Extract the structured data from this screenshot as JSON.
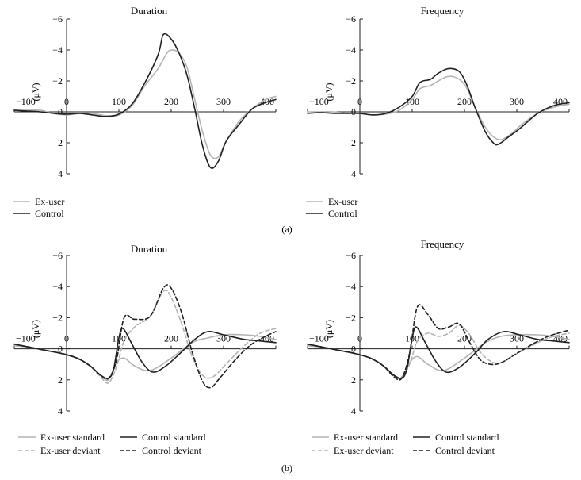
{
  "figure": {
    "panel_labels": [
      "(a)",
      "(b)"
    ],
    "y_unit_label": "(μV)"
  },
  "chart_data": [
    {
      "type": "line",
      "panel": "(a)",
      "title": "Duration",
      "xlabel": "",
      "ylabel": "(μV)",
      "xlim": [
        -100,
        400
      ],
      "ylim": [
        -6,
        4
      ],
      "y_inverted": true,
      "x_ticks": [
        -100,
        0,
        100,
        200,
        300,
        400
      ],
      "y_ticks": [
        -6,
        -4,
        -2,
        0,
        2,
        4
      ],
      "legend": "bottom-left",
      "series": [
        {
          "name": "Ex-user",
          "color": "#b3b3b3",
          "dash": "solid",
          "x": [
            -100,
            -75,
            -50,
            -25,
            0,
            25,
            50,
            75,
            100,
            125,
            150,
            175,
            190,
            200,
            215,
            230,
            245,
            260,
            275,
            290,
            305,
            330,
            355,
            380,
            400
          ],
          "y": [
            -0.1,
            -0.1,
            -0.1,
            0.1,
            0.2,
            0.1,
            0.1,
            0.25,
            0.2,
            -0.4,
            -1.7,
            -2.8,
            -3.7,
            -4.0,
            -3.8,
            -2.9,
            -0.8,
            1.3,
            2.8,
            2.9,
            1.9,
            0.6,
            -0.2,
            -0.8,
            -1.0
          ]
        },
        {
          "name": "Control",
          "color": "#231f20",
          "dash": "solid",
          "x": [
            -100,
            -75,
            -50,
            -25,
            0,
            25,
            50,
            75,
            100,
            125,
            150,
            175,
            185,
            200,
            215,
            230,
            245,
            260,
            275,
            290,
            305,
            330,
            355,
            380,
            400
          ],
          "y": [
            -0.1,
            -0.05,
            0,
            0.1,
            0.15,
            0.1,
            0.2,
            0.3,
            0.15,
            -0.5,
            -1.9,
            -3.7,
            -5.0,
            -4.7,
            -3.8,
            -2.4,
            -0.2,
            2.2,
            3.6,
            3.2,
            1.9,
            0.8,
            -0.2,
            -0.6,
            -0.8
          ]
        }
      ]
    },
    {
      "type": "line",
      "panel": "(a)",
      "title": "Frequency",
      "xlabel": "",
      "ylabel": "(μV)",
      "xlim": [
        -100,
        400
      ],
      "ylim": [
        -6,
        4
      ],
      "y_inverted": true,
      "x_ticks": [
        -100,
        0,
        100,
        200,
        300,
        400
      ],
      "y_ticks": [
        -6,
        -4,
        -2,
        0,
        2,
        4
      ],
      "legend": "bottom-left",
      "series": [
        {
          "name": "Ex-user",
          "color": "#b3b3b3",
          "dash": "solid",
          "x": [
            -100,
            -75,
            -50,
            -25,
            0,
            25,
            50,
            75,
            100,
            115,
            135,
            150,
            170,
            190,
            205,
            220,
            240,
            255,
            270,
            290,
            310,
            340,
            370,
            400
          ],
          "y": [
            0,
            0,
            0,
            0.1,
            0.1,
            0.2,
            0.15,
            -0.1,
            -0.8,
            -1.5,
            -1.7,
            -2.0,
            -2.3,
            -2.1,
            -1.5,
            -0.3,
            1.0,
            1.6,
            1.8,
            1.4,
            0.8,
            0.1,
            -0.3,
            -0.5
          ]
        },
        {
          "name": "Control",
          "color": "#231f20",
          "dash": "solid",
          "x": [
            -100,
            -75,
            -50,
            -25,
            0,
            25,
            50,
            75,
            100,
            115,
            135,
            150,
            170,
            190,
            205,
            220,
            240,
            255,
            265,
            285,
            305,
            340,
            370,
            400
          ],
          "y": [
            0.1,
            0.05,
            0.1,
            0.1,
            0.1,
            0.2,
            0.1,
            -0.3,
            -1.0,
            -1.9,
            -2.1,
            -2.5,
            -2.8,
            -2.6,
            -1.7,
            -0.3,
            1.3,
            2.0,
            2.1,
            1.6,
            1.1,
            0.1,
            -0.4,
            -0.6
          ]
        }
      ]
    },
    {
      "type": "line",
      "panel": "(b)",
      "title": "Duration",
      "xlabel": "",
      "ylabel": "(μV)",
      "xlim": [
        -100,
        400
      ],
      "ylim": [
        -6,
        4
      ],
      "y_inverted": true,
      "x_ticks": [
        -100,
        0,
        100,
        200,
        300,
        400
      ],
      "y_ticks": [
        -6,
        -4,
        -2,
        0,
        2,
        4
      ],
      "legend": "bottom-left",
      "series": [
        {
          "name": "Ex-user standard",
          "color": "#b3b3b3",
          "dash": "solid",
          "x": [
            -100,
            -70,
            -40,
            -10,
            20,
            45,
            65,
            80,
            95,
            110,
            130,
            160,
            200,
            240,
            270,
            300,
            340,
            370,
            400
          ],
          "y": [
            -0.2,
            -0.1,
            0.1,
            0.3,
            0.6,
            1.1,
            1.7,
            2.0,
            0.9,
            0.6,
            1.1,
            1.4,
            0.6,
            -0.4,
            -0.7,
            -0.9,
            -0.9,
            -0.8,
            -0.6
          ]
        },
        {
          "name": "Ex-user deviant",
          "color": "#b3b3b3",
          "dash": "dashed",
          "x": [
            -100,
            -70,
            -40,
            -10,
            20,
            45,
            65,
            80,
            95,
            110,
            130,
            160,
            185,
            200,
            220,
            240,
            260,
            280,
            310,
            340,
            370,
            400
          ],
          "y": [
            -0.2,
            -0.1,
            0.1,
            0.3,
            0.6,
            1.1,
            1.8,
            2.2,
            1.2,
            -0.5,
            -1.4,
            -2.1,
            -3.7,
            -3.3,
            -1.6,
            0.5,
            1.7,
            1.8,
            0.8,
            -0.2,
            -1.0,
            -1.3
          ]
        },
        {
          "name": "Control standard",
          "color": "#231f20",
          "dash": "solid",
          "x": [
            -100,
            -70,
            -40,
            -10,
            20,
            45,
            65,
            80,
            90,
            100,
            108,
            125,
            145,
            165,
            190,
            220,
            245,
            270,
            300,
            340,
            370,
            400
          ],
          "y": [
            -0.3,
            -0.1,
            0.1,
            0.3,
            0.6,
            1.1,
            1.7,
            1.9,
            1.3,
            -0.7,
            -1.3,
            -0.3,
            0.9,
            1.5,
            1.1,
            0.2,
            -0.6,
            -1.1,
            -0.9,
            -0.6,
            -0.5,
            -0.4
          ]
        },
        {
          "name": "Control deviant",
          "color": "#231f20",
          "dash": "dashed",
          "x": [
            -100,
            -70,
            -40,
            -10,
            20,
            45,
            65,
            80,
            95,
            110,
            130,
            160,
            185,
            200,
            220,
            240,
            260,
            275,
            290,
            320,
            350,
            380,
            400
          ],
          "y": [
            -0.3,
            -0.1,
            0.1,
            0.3,
            0.6,
            1.1,
            1.7,
            1.9,
            0.8,
            -2.0,
            -1.9,
            -2.1,
            -3.9,
            -3.9,
            -2.3,
            0.2,
            2.1,
            2.5,
            2.0,
            0.8,
            -0.2,
            -0.8,
            -1.1
          ]
        }
      ]
    },
    {
      "type": "line",
      "panel": "(b)",
      "title": "Frequency",
      "xlabel": "",
      "ylabel": "(μV)",
      "xlim": [
        -100,
        400
      ],
      "ylim": [
        -6,
        4
      ],
      "y_inverted": true,
      "x_ticks": [
        -100,
        0,
        100,
        200,
        300,
        400
      ],
      "y_ticks": [
        -6,
        -4,
        -2,
        0,
        2,
        4
      ],
      "legend": "bottom-left",
      "series": [
        {
          "name": "Ex-user standard",
          "color": "#b3b3b3",
          "dash": "solid",
          "x": [
            -100,
            -70,
            -40,
            -10,
            20,
            45,
            65,
            80,
            95,
            110,
            130,
            160,
            200,
            240,
            270,
            300,
            340,
            370,
            400
          ],
          "y": [
            -0.2,
            -0.1,
            0.1,
            0.3,
            0.6,
            1.1,
            1.7,
            1.9,
            0.9,
            0.5,
            1.0,
            1.4,
            0.6,
            -0.4,
            -0.8,
            -0.9,
            -0.9,
            -0.8,
            -0.6
          ]
        },
        {
          "name": "Ex-user deviant",
          "color": "#b3b3b3",
          "dash": "dashed",
          "x": [
            -100,
            -70,
            -40,
            -10,
            20,
            45,
            65,
            80,
            95,
            110,
            130,
            150,
            170,
            190,
            210,
            230,
            250,
            270,
            300,
            340,
            370,
            400
          ],
          "y": [
            -0.2,
            -0.1,
            0.1,
            0.3,
            0.6,
            1.1,
            1.7,
            1.8,
            1.0,
            -0.5,
            -1.0,
            -0.8,
            -1.0,
            -1.5,
            -0.9,
            0.2,
            0.8,
            0.9,
            0.3,
            -0.4,
            -0.8,
            -1.0
          ]
        },
        {
          "name": "Control standard",
          "color": "#231f20",
          "dash": "solid",
          "x": [
            -100,
            -70,
            -40,
            -10,
            20,
            45,
            65,
            80,
            90,
            100,
            108,
            125,
            145,
            165,
            190,
            220,
            245,
            275,
            305,
            340,
            370,
            400
          ],
          "y": [
            -0.3,
            -0.1,
            0.1,
            0.3,
            0.6,
            1.1,
            1.7,
            1.9,
            1.3,
            -0.7,
            -1.4,
            -0.4,
            0.8,
            1.5,
            1.2,
            0.3,
            -0.6,
            -1.1,
            -0.9,
            -0.6,
            -0.5,
            -0.4
          ]
        },
        {
          "name": "Control deviant",
          "color": "#231f20",
          "dash": "dashed",
          "x": [
            -100,
            -70,
            -40,
            -10,
            20,
            45,
            65,
            80,
            95,
            110,
            130,
            150,
            170,
            190,
            210,
            230,
            250,
            270,
            300,
            330,
            360,
            400
          ],
          "y": [
            -0.3,
            -0.1,
            0.1,
            0.3,
            0.6,
            1.1,
            1.8,
            1.9,
            0.3,
            -2.7,
            -2.2,
            -1.3,
            -1.4,
            -1.6,
            -0.4,
            0.7,
            1.0,
            0.9,
            0.3,
            -0.3,
            -0.8,
            -1.2
          ]
        }
      ]
    }
  ]
}
